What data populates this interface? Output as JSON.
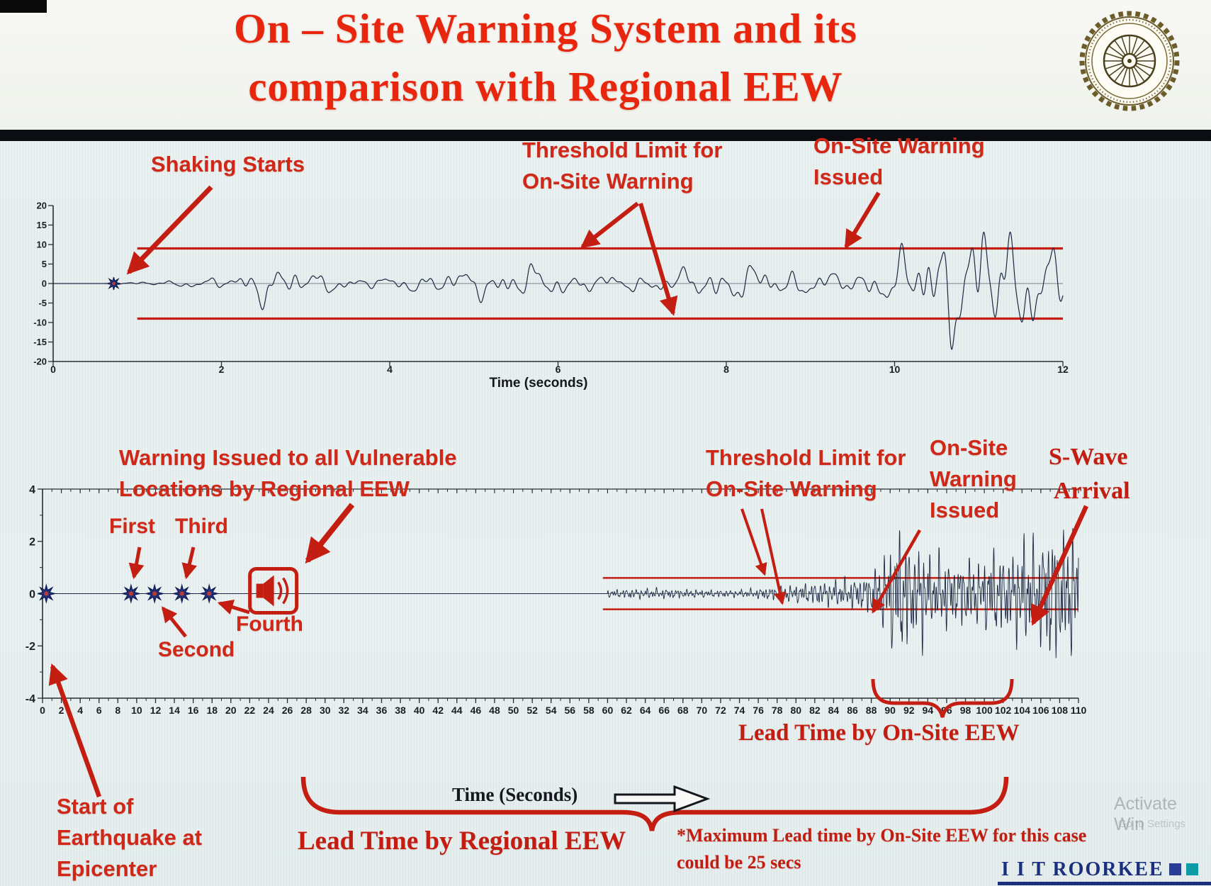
{
  "header": {
    "title_line1": "On – Site Warning System and its",
    "title_line2": "comparison with Regional EEW"
  },
  "top_chart": {
    "xlabel": "Time (seconds)",
    "annotations": {
      "shaking_starts": "Shaking Starts",
      "threshold_line1": "Threshold Limit for",
      "threshold_line2": "On-Site Warning",
      "warning_issued_line1": "On-Site Warning",
      "warning_issued_line2": "Issued"
    }
  },
  "bottom_chart": {
    "xlabel": "Time (Seconds)",
    "annotations": {
      "regional_warning_line1": "Warning Issued to all Vulnerable",
      "regional_warning_line2": "Locations by Regional EEW",
      "first": "First",
      "second": "Second",
      "third": "Third",
      "fourth": "Fourth",
      "threshold_line1": "Threshold Limit for",
      "threshold_line2": "On-Site Warning",
      "onsite_line1": "On-Site",
      "onsite_line2": "Warning",
      "onsite_line3": "Issued",
      "swave_line1": "S-Wave",
      "swave_line2": "Arrival",
      "lead_time_onsite": "Lead Time by On-Site EEW",
      "lead_time_regional": "Lead Time by Regional EEW",
      "note_line1": "*Maximum Lead time by On-Site EEW for this case",
      "note_line2": "could be 25 secs",
      "epicenter_line1": "Start of",
      "epicenter_line2": "Earthquake at",
      "epicenter_line3": "Epicenter"
    }
  },
  "footer": {
    "brand": "I I T ROORKEE",
    "watermark_line1": "Activate Win",
    "watermark_line2": "Go to Settings"
  },
  "colors": {
    "accent_red": "#d02818",
    "crimson": "#c41d12",
    "waveform_navy": "#1c2742",
    "brand_navy": "#1b2f7e"
  },
  "chart_data": [
    {
      "type": "line",
      "name": "onsite-accelerogram",
      "xlabel": "Time (seconds)",
      "xlim": [
        0,
        12
      ],
      "xticks": [
        0,
        2,
        4,
        6,
        8,
        10,
        12
      ],
      "ylim": [
        -20,
        20
      ],
      "yticks": [
        20,
        15,
        10,
        5,
        0,
        -5,
        -10,
        -15,
        -20
      ],
      "grid": false,
      "threshold": 9,
      "threshold_x_start": 1.0,
      "line_color": "#1c2742",
      "threshold_color": "#c41d12",
      "markers": [
        {
          "label": "Shaking Starts",
          "t": 0.72,
          "R": 9
        }
      ],
      "seed": 7,
      "samples": 2600,
      "noise": [
        [
          1.1,
          0.6
        ],
        [
          2.3,
          0.9
        ],
        [
          3.9,
          0.7
        ],
        [
          6.1,
          0.5
        ],
        [
          9.3,
          0.3
        ]
      ],
      "amplitude_envelope": [
        [
          0.72,
          0.6
        ],
        [
          1.2,
          1.2
        ],
        [
          2.2,
          1.8
        ],
        [
          2.45,
          4.8
        ],
        [
          2.8,
          4.2
        ],
        [
          3.5,
          3.2
        ],
        [
          4.2,
          3.8
        ],
        [
          5,
          3.4
        ],
        [
          5.6,
          4.6
        ],
        [
          6.2,
          4.2
        ],
        [
          6.8,
          4.8
        ],
        [
          7.4,
          4
        ],
        [
          8,
          4.4
        ],
        [
          8.6,
          4.2
        ],
        [
          9,
          4.8
        ],
        [
          9.4,
          6
        ],
        [
          9.8,
          8.5
        ],
        [
          10.1,
          13
        ],
        [
          10.45,
          17
        ],
        [
          10.8,
          13
        ],
        [
          11.1,
          16
        ],
        [
          11.5,
          14
        ],
        [
          11.8,
          17
        ],
        [
          12,
          12
        ]
      ],
      "events": {
        "shaking_start_t": 0.72,
        "onsite_warning_issued_t": 9.4
      }
    },
    {
      "type": "line",
      "name": "regional-seismogram",
      "xlabel": "Time (Seconds)",
      "xlim": [
        0,
        110
      ],
      "xtick_step": 2,
      "xminor_step": 1,
      "ylim": [
        -4,
        4
      ],
      "yticks": [
        4,
        2,
        0,
        -2,
        -4
      ],
      "yminor": [
        3,
        1,
        -1,
        -3
      ],
      "top_ticks": true,
      "grid": false,
      "threshold": 0.6,
      "threshold_x_start": 59.5,
      "line_color": "#1c2742",
      "threshold_color": "#c41d12",
      "markers": [
        {
          "label": "Epicenter",
          "t": 0.4,
          "R": 12
        },
        {
          "label": "First",
          "t": 9.4,
          "R": 12
        },
        {
          "label": "Second",
          "t": 11.9,
          "R": 12
        },
        {
          "label": "Third",
          "t": 14.8,
          "R": 12
        },
        {
          "label": "Fourth",
          "t": 17.7,
          "R": 12
        }
      ],
      "regional_warning_t": 24.5,
      "seed": 13,
      "samples": 3600,
      "noise": [
        [
          0.9,
          0.5
        ],
        [
          1.9,
          0.9
        ],
        [
          3.1,
          0.8
        ],
        [
          4.3,
          0.6
        ],
        [
          6,
          0.35
        ]
      ],
      "amplitude_envelope": [
        [
          60,
          0.12
        ],
        [
          63,
          0.18
        ],
        [
          66,
          0.25
        ],
        [
          70,
          0.3
        ],
        [
          74,
          0.28
        ],
        [
          78,
          0.35
        ],
        [
          82,
          0.38
        ],
        [
          85,
          0.45
        ],
        [
          87,
          0.55
        ],
        [
          88.5,
          0.9
        ],
        [
          89.5,
          1.6
        ],
        [
          90.5,
          2.6
        ],
        [
          91.5,
          3.1
        ],
        [
          92.5,
          2.2
        ],
        [
          93.5,
          3.2
        ],
        [
          94.5,
          2
        ],
        [
          95.5,
          3
        ],
        [
          97,
          2.3
        ],
        [
          98,
          3.1
        ],
        [
          99.5,
          2.5
        ],
        [
          101,
          3.2
        ],
        [
          102.5,
          2.2
        ],
        [
          104,
          2.8
        ],
        [
          105.5,
          2
        ],
        [
          107,
          2.6
        ],
        [
          108.5,
          2.1
        ],
        [
          110,
          2.4
        ]
      ],
      "events": {
        "s_wave_arrival_t": 93,
        "onsite_warning_issued_t": 88,
        "max_lead_time_note_secs": 25
      }
    }
  ]
}
